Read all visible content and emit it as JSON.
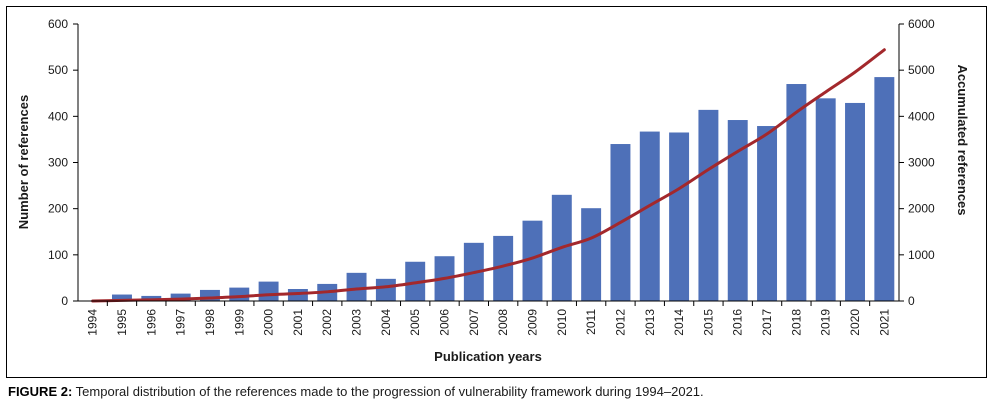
{
  "caption": {
    "label": "FIGURE 2:",
    "text": " Temporal distribution of the references made to the progression of vulnerability framework during 1994–2021."
  },
  "colors": {
    "bar": "#4E70B8",
    "line": "#A3282C",
    "axis": "#000000"
  },
  "chart_data": {
    "type": "bar",
    "title": "",
    "xlabel": "Publication years",
    "ylabel": "Number of references",
    "y2label": "Accumulated references",
    "ylim": [
      0,
      600
    ],
    "y2lim": [
      0,
      6000
    ],
    "yticks": [
      0,
      100,
      200,
      300,
      400,
      500,
      600
    ],
    "y2ticks": [
      0,
      1000,
      2000,
      3000,
      4000,
      5000,
      6000
    ],
    "grid": false,
    "legend": "none",
    "categories": [
      "1994",
      "1995",
      "1996",
      "1997",
      "1998",
      "1999",
      "2000",
      "2001",
      "2002",
      "2003",
      "2004",
      "2005",
      "2006",
      "2007",
      "2008",
      "2009",
      "2010",
      "2011",
      "2012",
      "2013",
      "2014",
      "2015",
      "2016",
      "2017",
      "2018",
      "2019",
      "2020",
      "2021"
    ],
    "series": [
      {
        "name": "Number of references",
        "type": "bar",
        "axis": "left",
        "values": [
          0,
          14,
          11,
          16,
          24,
          29,
          42,
          26,
          37,
          61,
          48,
          85,
          97,
          126,
          141,
          174,
          230,
          201,
          340,
          367,
          365,
          414,
          392,
          379,
          470,
          439,
          429,
          485
        ]
      },
      {
        "name": "Accumulated references",
        "type": "line",
        "axis": "right",
        "smooth": true,
        "values": [
          0,
          14,
          25,
          41,
          65,
          94,
          136,
          162,
          199,
          260,
          308,
          393,
          490,
          616,
          757,
          931,
          1161,
          1362,
          1702,
          2069,
          2434,
          2848,
          3240,
          3619,
          4089,
          4528,
          4957,
          5442
        ]
      }
    ]
  }
}
